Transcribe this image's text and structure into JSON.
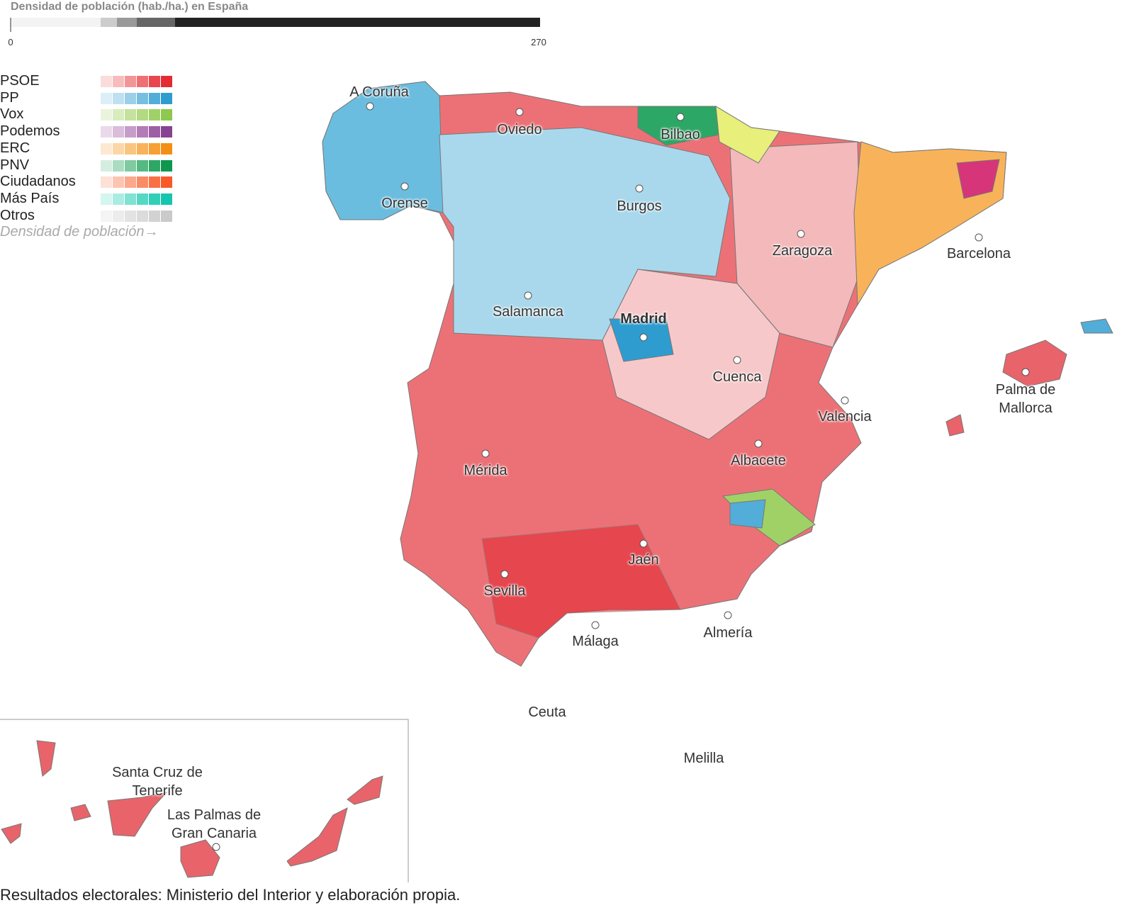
{
  "density_scale": {
    "title": "Densidad de población (hab./ha.) en España",
    "min": 0,
    "max": 270
  },
  "legend": {
    "parties": [
      {
        "name": "PSOE",
        "colors": [
          "#fbdcdc",
          "#f7bcbd",
          "#f29597",
          "#ee7074",
          "#e9474d",
          "#e32b33"
        ]
      },
      {
        "name": "PP",
        "colors": [
          "#dceef7",
          "#bfe0f0",
          "#9bd0e8",
          "#76bfe0",
          "#52add8",
          "#2f9ccf"
        ]
      },
      {
        "name": "Vox",
        "colors": [
          "#eaf4dc",
          "#d8ecbe",
          "#c4e29d",
          "#b2da80",
          "#a0d166",
          "#8fc84e"
        ]
      },
      {
        "name": "Podemos",
        "colors": [
          "#ead9ea",
          "#d9bddb",
          "#c69cc9",
          "#b27db6",
          "#9d60a4",
          "#874391"
        ]
      },
      {
        "name": "ERC",
        "colors": [
          "#fde9d1",
          "#fbd7a8",
          "#fac57f",
          "#f8b35a",
          "#f6a035",
          "#f48f16"
        ]
      },
      {
        "name": "PNV",
        "colors": [
          "#d4ede0",
          "#aadcc1",
          "#7fcaa1",
          "#55b983",
          "#2da765",
          "#0f974f"
        ]
      },
      {
        "name": "Ciudadanos",
        "colors": [
          "#fde1d6",
          "#fcc5b1",
          "#fba88b",
          "#f98c66",
          "#f87145",
          "#f65a28"
        ]
      },
      {
        "name": "Más País",
        "colors": [
          "#d4f5f0",
          "#aaece2",
          "#80e2d3",
          "#57d8c5",
          "#31cfb8",
          "#14c6ad"
        ]
      },
      {
        "name": "Otros",
        "colors": [
          "#f4f4f4",
          "#ececec",
          "#e3e3e3",
          "#dbdbdb",
          "#d2d2d2",
          "#cacaca"
        ]
      }
    ],
    "note": "Densidad de población→"
  },
  "cities": [
    "A Coruña",
    "Oviedo",
    "Bilbao",
    "Orense",
    "Burgos",
    "Zaragoza",
    "Barcelona",
    "Salamanca",
    "Madrid",
    "Cuenca",
    "Valencia",
    "Palma de Mallorca",
    "Mérida",
    "Albacete",
    "Jaén",
    "Sevilla",
    "Málaga",
    "Almería",
    "Ceuta",
    "Melilla",
    "Santa Cruz de Tenerife",
    "Las Palmas de Gran Canaria"
  ],
  "source": "Resultados electorales: Ministerio del Interior y elaboración propia."
}
